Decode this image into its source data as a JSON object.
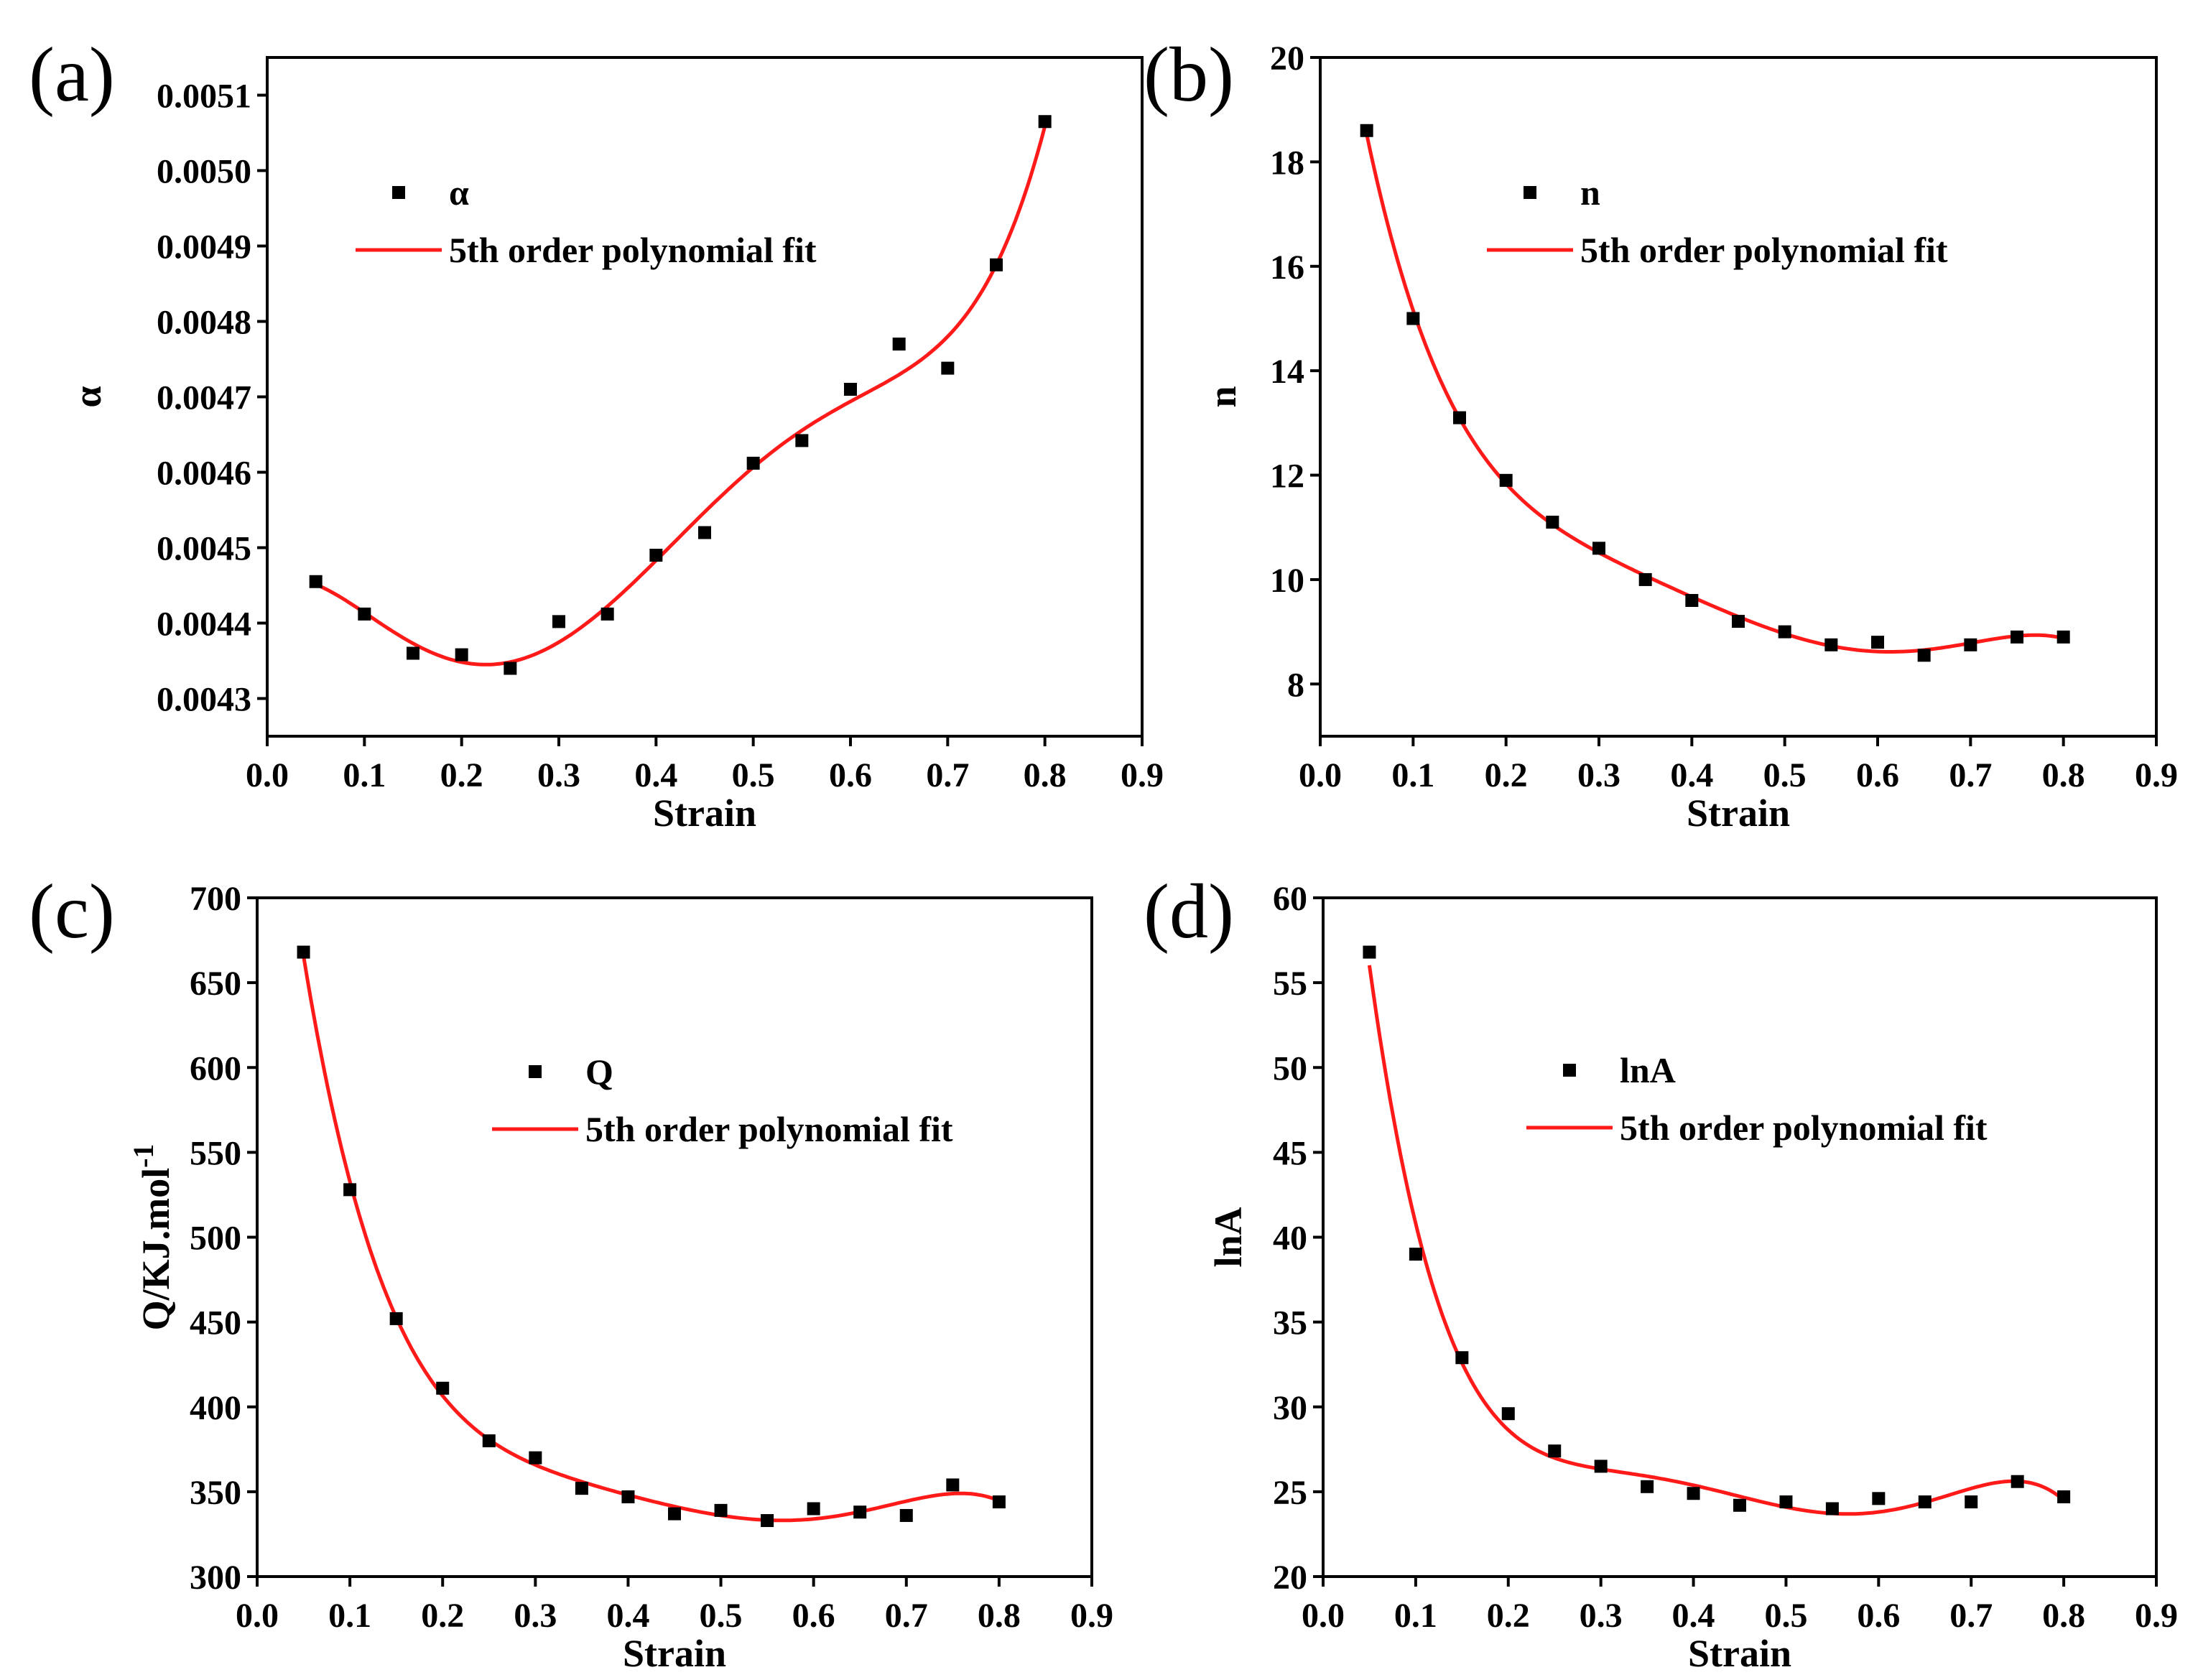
{
  "figure_title": "",
  "chart_data": [
    {
      "panel": "(a)",
      "type": "scatter",
      "xlabel": "Strain",
      "ylabel": "α",
      "xlim": [
        0.0,
        0.9
      ],
      "ylim": [
        0.00425,
        0.00515
      ],
      "xticks": [
        0.0,
        0.1,
        0.2,
        0.3,
        0.4,
        0.5,
        0.6,
        0.7,
        0.8,
        0.9
      ],
      "xtick_labels": [
        "0.0",
        "0.1",
        "0.2",
        "0.3",
        "0.4",
        "0.5",
        "0.6",
        "0.7",
        "0.8",
        "0.9"
      ],
      "yticks": [
        0.0043,
        0.0044,
        0.0045,
        0.0046,
        0.0047,
        0.0048,
        0.0049,
        0.005,
        0.0051
      ],
      "ytick_labels": [
        "0.0043",
        "0.0044",
        "0.0045",
        "0.0046",
        "0.0047",
        "0.0048",
        "0.0049",
        "0.0050",
        "0.0051"
      ],
      "legend": {
        "marker_label": "α",
        "line_label": "5th order polynomial fit",
        "position": "upper-left"
      },
      "x": [
        0.05,
        0.1,
        0.15,
        0.2,
        0.25,
        0.3,
        0.35,
        0.4,
        0.45,
        0.5,
        0.55,
        0.6,
        0.65,
        0.7,
        0.75,
        0.8
      ],
      "y": [
        0.004455,
        0.004412,
        0.00436,
        0.004358,
        0.00434,
        0.004402,
        0.004412,
        0.00449,
        0.00452,
        0.004612,
        0.004642,
        0.00471,
        0.00477,
        0.004738,
        0.004875,
        0.005065
      ],
      "fit_color": "#ff1a1a",
      "marker_color": "#000000"
    },
    {
      "panel": "(b)",
      "type": "scatter",
      "xlabel": "Strain",
      "ylabel": "n",
      "xlim": [
        0.0,
        0.9
      ],
      "ylim": [
        7.0,
        20.0
      ],
      "xticks": [
        0.0,
        0.1,
        0.2,
        0.3,
        0.4,
        0.5,
        0.6,
        0.7,
        0.8,
        0.9
      ],
      "xtick_labels": [
        "0.0",
        "0.1",
        "0.2",
        "0.3",
        "0.4",
        "0.5",
        "0.6",
        "0.7",
        "0.8",
        "0.9"
      ],
      "yticks": [
        8,
        10,
        12,
        14,
        16,
        18,
        20
      ],
      "ytick_labels": [
        "8",
        "10",
        "12",
        "14",
        "16",
        "18",
        "20"
      ],
      "legend": {
        "marker_label": "n",
        "line_label": "5th order polynomial fit",
        "position": "upper-right"
      },
      "x": [
        0.05,
        0.1,
        0.15,
        0.2,
        0.25,
        0.3,
        0.35,
        0.4,
        0.45,
        0.5,
        0.55,
        0.6,
        0.65,
        0.7,
        0.75,
        0.8
      ],
      "y": [
        18.6,
        15.0,
        13.1,
        11.9,
        11.1,
        10.6,
        10.0,
        9.6,
        9.2,
        9.0,
        8.75,
        8.8,
        8.55,
        8.75,
        8.9,
        8.9
      ],
      "fit_color": "#ff1a1a",
      "marker_color": "#000000"
    },
    {
      "panel": "(c)",
      "type": "scatter",
      "xlabel": "Strain",
      "ylabel": "Q/KJ.mol",
      "ylabel_superscript": "-1",
      "xlim": [
        0.0,
        0.9
      ],
      "ylim": [
        300,
        700
      ],
      "xticks": [
        0.0,
        0.1,
        0.2,
        0.3,
        0.4,
        0.5,
        0.6,
        0.7,
        0.8,
        0.9
      ],
      "xtick_labels": [
        "0.0",
        "0.1",
        "0.2",
        "0.3",
        "0.4",
        "0.5",
        "0.6",
        "0.7",
        "0.8",
        "0.9"
      ],
      "yticks": [
        300,
        350,
        400,
        450,
        500,
        550,
        600,
        650,
        700
      ],
      "ytick_labels": [
        "300",
        "350",
        "400",
        "450",
        "500",
        "550",
        "600",
        "650",
        "700"
      ],
      "legend": {
        "marker_label": "Q",
        "line_label": "5th order polynomial fit",
        "position": "center-right"
      },
      "x": [
        0.05,
        0.1,
        0.15,
        0.2,
        0.25,
        0.3,
        0.35,
        0.4,
        0.45,
        0.5,
        0.55,
        0.6,
        0.65,
        0.7,
        0.75,
        0.8
      ],
      "y": [
        668,
        528,
        452,
        411,
        380,
        370,
        352,
        347,
        337,
        339,
        333,
        340,
        338,
        336,
        354,
        344
      ],
      "fit_color": "#ff1a1a",
      "marker_color": "#000000"
    },
    {
      "panel": "(d)",
      "type": "scatter",
      "xlabel": "Strain",
      "ylabel": "lnA",
      "xlim": [
        0.0,
        0.9
      ],
      "ylim": [
        20,
        60
      ],
      "xticks": [
        0.0,
        0.1,
        0.2,
        0.3,
        0.4,
        0.5,
        0.6,
        0.7,
        0.8,
        0.9
      ],
      "xtick_labels": [
        "0.0",
        "0.1",
        "0.2",
        "0.3",
        "0.4",
        "0.5",
        "0.6",
        "0.7",
        "0.8",
        "0.9"
      ],
      "yticks": [
        20,
        25,
        30,
        35,
        40,
        45,
        50,
        55,
        60
      ],
      "ytick_labels": [
        "20",
        "25",
        "30",
        "35",
        "40",
        "45",
        "50",
        "55",
        "60"
      ],
      "legend": {
        "marker_label": "lnA",
        "line_label": "5th order polynomial fit",
        "position": "center-right"
      },
      "x": [
        0.05,
        0.1,
        0.15,
        0.2,
        0.25,
        0.3,
        0.35,
        0.4,
        0.45,
        0.5,
        0.55,
        0.6,
        0.65,
        0.7,
        0.75,
        0.8
      ],
      "y": [
        56.8,
        39.0,
        32.9,
        29.6,
        27.4,
        26.5,
        25.3,
        24.9,
        24.2,
        24.4,
        24.0,
        24.6,
        24.4,
        24.4,
        25.6,
        24.7
      ],
      "fit_color": "#ff1a1a",
      "marker_color": "#000000"
    }
  ]
}
